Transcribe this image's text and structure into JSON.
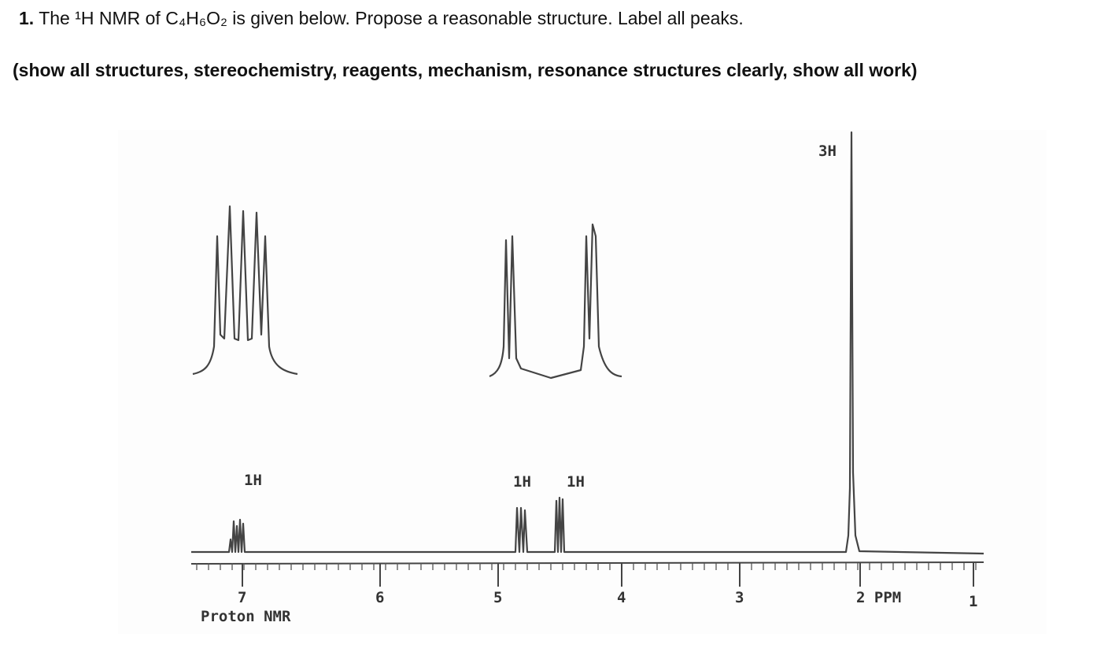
{
  "question": {
    "number": "1.",
    "text": "The ¹H NMR of C₄H₆O₂ is given below. Propose a reasonable structure. Label all peaks.",
    "instructions": "(show all structures, stereochemistry, reagents, mechanism, resonance structures clearly, show all work)"
  },
  "spectrum": {
    "peak_labels": [
      "1H",
      "1H",
      "1H",
      "3H"
    ],
    "axis_ticks": [
      "7",
      "6",
      "5",
      "4",
      "3",
      "2 PPM",
      "1"
    ],
    "caption": "Proton NMR"
  }
}
